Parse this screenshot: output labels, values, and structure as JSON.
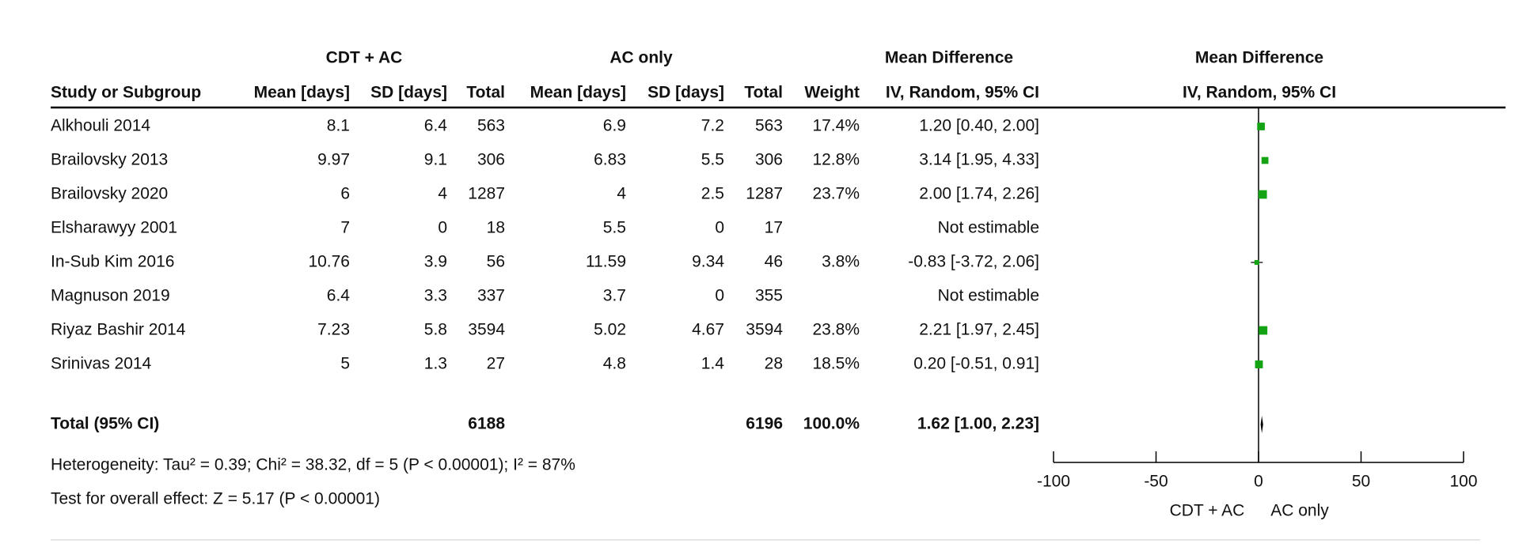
{
  "groups": {
    "experimental": "CDT + AC",
    "control": "AC only",
    "table_effect": "Mean Difference",
    "plot_effect": "Mean Difference"
  },
  "columns": [
    "Study or Subgroup",
    "Mean [days]",
    "SD [days]",
    "Total",
    "Mean [days]",
    "SD [days]",
    "Total",
    "Weight",
    "IV, Random, 95% CI",
    "IV, Random, 95% CI"
  ],
  "rows": [
    [
      "Alkhouli 2014",
      8.1,
      6.4,
      563,
      6.9,
      7.2,
      563,
      "17.4%",
      "1.20 [0.40, 2.00]"
    ],
    [
      "Brailovsky 2013",
      9.97,
      9.1,
      306,
      6.83,
      5.5,
      306,
      "12.8%",
      "3.14 [1.95, 4.33]"
    ],
    [
      "Brailovsky 2020",
      6,
      4,
      1287,
      4,
      2.5,
      1287,
      "23.7%",
      "2.00 [1.74, 2.26]"
    ],
    [
      "Elsharawyy 2001",
      7,
      0,
      18,
      5.5,
      0,
      17,
      null,
      "Not estimable"
    ],
    [
      "In-Sub Kim 2016",
      10.76,
      3.9,
      56,
      11.59,
      9.34,
      46,
      "3.8%",
      "-0.83 [-3.72, 2.06]"
    ],
    [
      "Magnuson 2019",
      6.4,
      3.3,
      337,
      3.7,
      0,
      355,
      null,
      "Not estimable"
    ],
    [
      "Riyaz Bashir 2014",
      7.23,
      5.8,
      3594,
      5.02,
      4.67,
      3594,
      "23.8%",
      "2.21 [1.97, 2.45]"
    ],
    [
      "Srinivas 2014",
      5,
      1.3,
      27,
      4.8,
      1.4,
      28,
      "18.5%",
      "0.20 [-0.51, 0.91]"
    ]
  ],
  "total": {
    "label": "Total (95% CI)",
    "experimental_total": 6188,
    "control_total": 6196,
    "weight": "100.0%",
    "ci": "1.62 [1.00, 2.23]"
  },
  "heterogeneity": "Heterogeneity: Tau² = 0.39; Chi² = 38.32, df = 5 (P < 0.00001); I² = 87%",
  "overall_effect": "Test for overall effect: Z = 5.17 (P < 0.00001)",
  "plot": {
    "xlim": [
      -100,
      100
    ],
    "xticks": [
      -100,
      -50,
      0,
      50,
      100
    ],
    "favours_left": "CDT + AC",
    "favours_right": "AC only",
    "estimates": [
      {
        "md": 1.2,
        "lo": 0.4,
        "hi": 2.0,
        "weight": 17.4
      },
      {
        "md": 3.14,
        "lo": 1.95,
        "hi": 4.33,
        "weight": 12.8
      },
      {
        "md": 2.0,
        "lo": 1.74,
        "hi": 2.26,
        "weight": 23.7
      },
      null,
      {
        "md": -0.83,
        "lo": -3.72,
        "hi": 2.06,
        "weight": 3.8
      },
      null,
      {
        "md": 2.21,
        "lo": 1.97,
        "hi": 2.45,
        "weight": 23.8
      },
      {
        "md": 0.2,
        "lo": -0.51,
        "hi": 0.91,
        "weight": 18.5
      }
    ],
    "total": {
      "md": 1.62,
      "lo": 1.0,
      "hi": 2.23
    }
  }
}
